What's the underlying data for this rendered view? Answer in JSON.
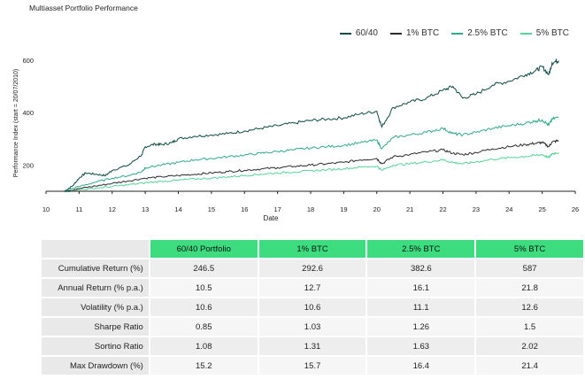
{
  "header": {
    "title": "Multiasset Portfolio Performance"
  },
  "colors": {
    "s6040": "#0d4a43",
    "s1": "#2b2b2b",
    "s25": "#2faa87",
    "s5": "#56d399",
    "table_header": "#3ddc7f"
  },
  "chart_data": {
    "type": "line",
    "xlabel": "Date",
    "ylabel": "Performance Index (start = 20/07/2010)",
    "xlim": [
      10,
      26
    ],
    "ylim": [
      100,
      620
    ],
    "xticks": [
      "10",
      "11",
      "12",
      "13",
      "14",
      "15",
      "16",
      "17",
      "18",
      "19",
      "20",
      "21",
      "22",
      "23",
      "24",
      "25",
      "26"
    ],
    "yticks": [
      200,
      400,
      600
    ],
    "legend_position": "top-right",
    "grid": false,
    "series": [
      {
        "name": "60/40",
        "color": "#0d4a43",
        "points": [
          [
            10.55,
            100
          ],
          [
            10.8,
            120
          ],
          [
            11.0,
            150
          ],
          [
            11.2,
            170
          ],
          [
            11.5,
            165
          ],
          [
            11.8,
            160
          ],
          [
            12.0,
            180
          ],
          [
            12.5,
            200
          ],
          [
            12.9,
            240
          ],
          [
            13.0,
            270
          ],
          [
            13.3,
            280
          ],
          [
            13.5,
            278
          ],
          [
            13.8,
            285
          ],
          [
            14.0,
            300
          ],
          [
            14.5,
            310
          ],
          [
            15.0,
            315
          ],
          [
            15.5,
            320
          ],
          [
            16.0,
            330
          ],
          [
            16.5,
            340
          ],
          [
            17.0,
            350
          ],
          [
            17.5,
            360
          ],
          [
            18.0,
            370
          ],
          [
            18.5,
            375
          ],
          [
            19.0,
            380
          ],
          [
            19.5,
            395
          ],
          [
            20.0,
            405
          ],
          [
            20.15,
            345
          ],
          [
            20.5,
            420
          ],
          [
            21.0,
            440
          ],
          [
            21.5,
            455
          ],
          [
            22.0,
            485
          ],
          [
            22.3,
            500
          ],
          [
            22.6,
            455
          ],
          [
            23.0,
            470
          ],
          [
            23.5,
            505
          ],
          [
            24.0,
            520
          ],
          [
            24.5,
            545
          ],
          [
            24.8,
            560
          ],
          [
            25.0,
            575
          ],
          [
            25.2,
            545
          ],
          [
            25.3,
            590
          ],
          [
            25.5,
            598
          ]
        ]
      },
      {
        "name": "1% BTC",
        "color": "#2b2b2b",
        "points": [
          [
            10.55,
            100
          ],
          [
            11.0,
            110
          ],
          [
            11.5,
            120
          ],
          [
            12.0,
            130
          ],
          [
            12.5,
            140
          ],
          [
            13.0,
            150
          ],
          [
            13.5,
            155
          ],
          [
            14.0,
            160
          ],
          [
            14.5,
            165
          ],
          [
            15.0,
            170
          ],
          [
            15.5,
            175
          ],
          [
            16.0,
            180
          ],
          [
            16.5,
            185
          ],
          [
            17.0,
            190
          ],
          [
            17.5,
            195
          ],
          [
            18.0,
            200
          ],
          [
            18.5,
            205
          ],
          [
            19.0,
            210
          ],
          [
            19.5,
            220
          ],
          [
            20.0,
            225
          ],
          [
            20.15,
            205
          ],
          [
            20.5,
            232
          ],
          [
            21.0,
            240
          ],
          [
            21.5,
            250
          ],
          [
            22.0,
            258
          ],
          [
            22.3,
            245
          ],
          [
            22.6,
            240
          ],
          [
            23.0,
            248
          ],
          [
            23.5,
            262
          ],
          [
            24.0,
            270
          ],
          [
            24.5,
            278
          ],
          [
            24.8,
            283
          ],
          [
            25.0,
            286
          ],
          [
            25.2,
            270
          ],
          [
            25.3,
            288
          ],
          [
            25.5,
            293
          ]
        ]
      },
      {
        "name": "2.5% BTC",
        "color": "#2faa87",
        "points": [
          [
            10.55,
            100
          ],
          [
            11.0,
            118
          ],
          [
            11.5,
            135
          ],
          [
            12.0,
            150
          ],
          [
            12.5,
            160
          ],
          [
            12.9,
            175
          ],
          [
            13.0,
            190
          ],
          [
            13.5,
            200
          ],
          [
            14.0,
            210
          ],
          [
            14.5,
            220
          ],
          [
            15.0,
            225
          ],
          [
            15.5,
            232
          ],
          [
            16.0,
            238
          ],
          [
            16.5,
            245
          ],
          [
            17.0,
            252
          ],
          [
            17.5,
            258
          ],
          [
            18.0,
            265
          ],
          [
            18.5,
            270
          ],
          [
            19.0,
            275
          ],
          [
            19.5,
            285
          ],
          [
            20.0,
            295
          ],
          [
            20.15,
            262
          ],
          [
            20.5,
            305
          ],
          [
            21.0,
            315
          ],
          [
            21.5,
            325
          ],
          [
            22.0,
            340
          ],
          [
            22.3,
            320
          ],
          [
            22.6,
            315
          ],
          [
            23.0,
            325
          ],
          [
            23.5,
            340
          ],
          [
            24.0,
            350
          ],
          [
            24.5,
            360
          ],
          [
            24.8,
            368
          ],
          [
            25.0,
            372
          ],
          [
            25.2,
            352
          ],
          [
            25.3,
            375
          ],
          [
            25.5,
            383
          ]
        ]
      },
      {
        "name": "5% BTC",
        "color": "#56d399",
        "points": [
          [
            10.55,
            100
          ],
          [
            11.0,
            105
          ],
          [
            11.5,
            112
          ],
          [
            12.0,
            118
          ],
          [
            12.5,
            125
          ],
          [
            13.0,
            132
          ],
          [
            13.5,
            138
          ],
          [
            14.0,
            142
          ],
          [
            14.5,
            147
          ],
          [
            15.0,
            150
          ],
          [
            15.5,
            155
          ],
          [
            16.0,
            160
          ],
          [
            16.5,
            165
          ],
          [
            17.0,
            170
          ],
          [
            17.5,
            174
          ],
          [
            18.0,
            178
          ],
          [
            18.5,
            182
          ],
          [
            19.0,
            186
          ],
          [
            19.5,
            192
          ],
          [
            20.0,
            196
          ],
          [
            20.15,
            180
          ],
          [
            20.5,
            200
          ],
          [
            21.0,
            205
          ],
          [
            21.5,
            212
          ],
          [
            22.0,
            220
          ],
          [
            22.3,
            210
          ],
          [
            22.6,
            205
          ],
          [
            23.0,
            212
          ],
          [
            23.5,
            222
          ],
          [
            24.0,
            228
          ],
          [
            24.5,
            233
          ],
          [
            24.8,
            237
          ],
          [
            25.0,
            240
          ],
          [
            25.2,
            228
          ],
          [
            25.3,
            243
          ],
          [
            25.5,
            248
          ]
        ]
      }
    ]
  },
  "table": {
    "headers": [
      "60/40 Portfolio",
      "1% BTC",
      "2.5% BTC",
      "5% BTC"
    ],
    "rows": [
      {
        "label": "Cumulative Return (%)",
        "values": [
          "246.5",
          "292.6",
          "382.6",
          "587"
        ]
      },
      {
        "label": "Annual Return (% p.a.)",
        "values": [
          "10.5",
          "12.7",
          "16.1",
          "21.8"
        ]
      },
      {
        "label": "Volatility (% p.a.)",
        "values": [
          "10.6",
          "10.6",
          "11.1",
          "12.6"
        ]
      },
      {
        "label": "Sharpe Ratio",
        "values": [
          "0.85",
          "1.03",
          "1.26",
          "1.5"
        ]
      },
      {
        "label": "Sortino Ratio",
        "values": [
          "1.08",
          "1.31",
          "1.63",
          "2.02"
        ]
      },
      {
        "label": "Max Drawdown (%)",
        "values": [
          "15.2",
          "15.7",
          "16.4",
          "21.4"
        ]
      }
    ]
  }
}
